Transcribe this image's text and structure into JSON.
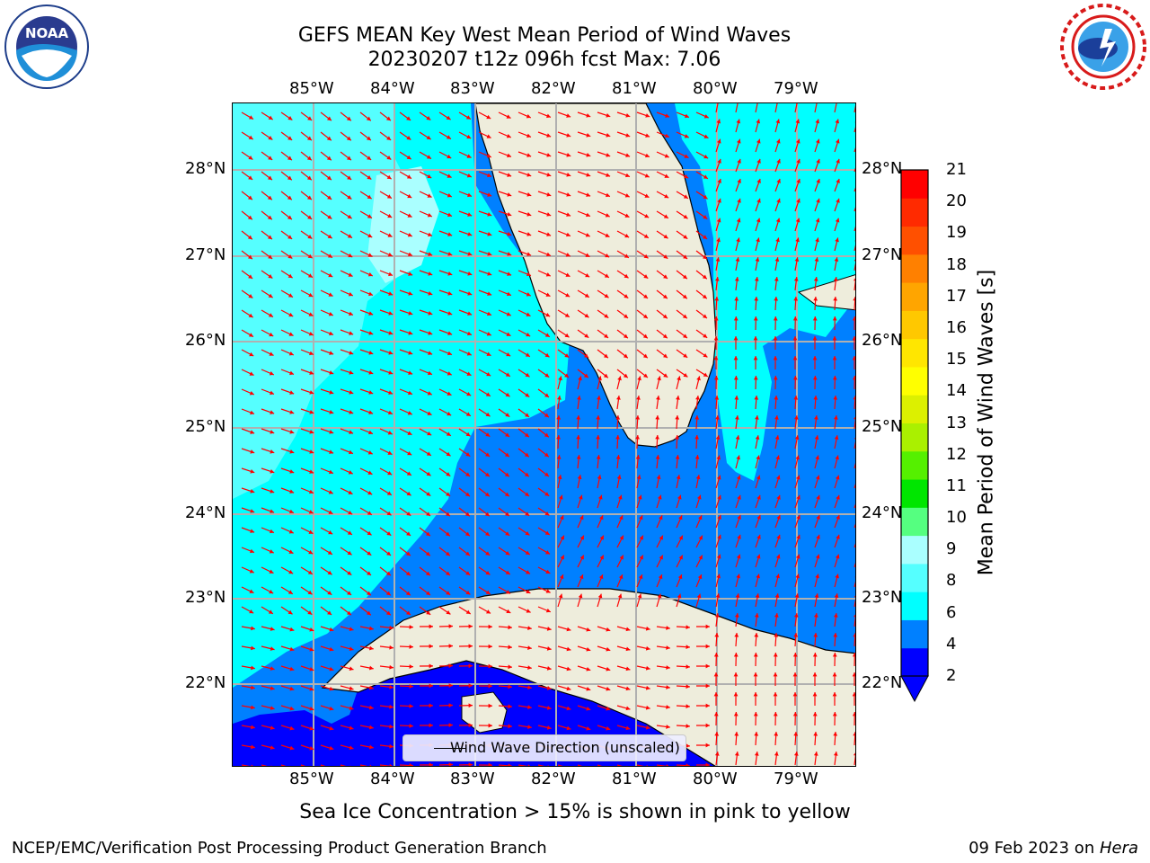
{
  "title": {
    "line1": "GEFS MEAN Key West Mean Period of Wind Waves",
    "line2": "20230207 t12z 096h fcst   Max: 7.06"
  },
  "map": {
    "lon_ticks": [
      "85°W",
      "84°W",
      "83°W",
      "82°W",
      "81°W",
      "80°W",
      "79°W"
    ],
    "lat_ticks": [
      "28°N",
      "27°N",
      "26°N",
      "25°N",
      "24°N",
      "23°N",
      "22°N"
    ],
    "extent": {
      "lon_min": -86.0,
      "lon_max": -78.25,
      "lat_min": 21.0,
      "lat_max": 28.75
    },
    "gridlines": true,
    "arrow_color": "#ff0000",
    "land_color": "#eeeddc",
    "coast_color": "#000000"
  },
  "colorbar": {
    "label": "Mean Period of Wind Waves [s]",
    "ticks": [
      "21",
      "20",
      "19",
      "18",
      "17",
      "16",
      "15",
      "14",
      "13",
      "12",
      "11",
      "10",
      "9",
      "8",
      "6",
      "4",
      "2"
    ],
    "colors": [
      "#0000ff",
      "#0080ff",
      "#00ffff",
      "#55ffff",
      "#aaffff",
      "#55ff80",
      "#00e600",
      "#55f000",
      "#aaf000",
      "#dcf000",
      "#ffff00",
      "#ffe600",
      "#ffc800",
      "#ffa500",
      "#ff8000",
      "#ff5000",
      "#ff2a00",
      "#ff0000"
    ]
  },
  "legend": {
    "label": "Wind Wave Direction (unscaled)"
  },
  "sea_ice_note": "Sea Ice Concentration > 15% is shown in pink to yellow",
  "footer": {
    "left": "NCEP/EMC/Verification Post Processing Product Generation Branch",
    "right_date": "09 Feb 2023 on ",
    "right_machine": "Hera"
  },
  "logos": {
    "noaa": "NOAA",
    "nws": "NATIONAL WEATHER SERVICE"
  }
}
